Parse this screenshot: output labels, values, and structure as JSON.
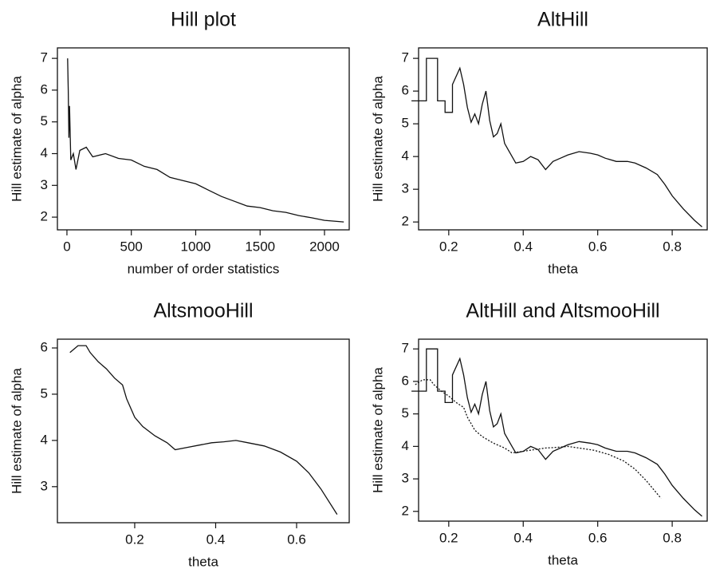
{
  "chart_data": [
    {
      "type": "line",
      "title": "Hill plot",
      "xlabel": "number of order statistics",
      "ylabel": "Hill estimate of alpha",
      "xlim": [
        -74,
        2192
      ],
      "ylim": [
        1.6,
        7.33
      ],
      "xticks": [
        0,
        500,
        1000,
        1500,
        2000
      ],
      "yticks": [
        2,
        3,
        4,
        5,
        6,
        7
      ],
      "series": [
        {
          "color": "#111111",
          "dash": false,
          "x": [
            5,
            10,
            15,
            20,
            30,
            50,
            70,
            100,
            150,
            200,
            300,
            400,
            500,
            600,
            700,
            800,
            900,
            1000,
            1100,
            1200,
            1300,
            1400,
            1500,
            1600,
            1700,
            1800,
            1900,
            2000,
            2150
          ],
          "values": [
            7,
            6,
            4.5,
            5.5,
            3.8,
            4,
            3.5,
            4.1,
            4.2,
            3.9,
            4.0,
            3.85,
            3.8,
            3.6,
            3.5,
            3.25,
            3.15,
            3.05,
            2.85,
            2.65,
            2.5,
            2.35,
            2.3,
            2.2,
            2.15,
            2.05,
            1.98,
            1.9,
            1.85
          ]
        }
      ]
    },
    {
      "type": "line",
      "title": "AltHill",
      "xlabel": "theta",
      "ylabel": "Hill estimate of alpha",
      "xlim": [
        0.119,
        0.894
      ],
      "ylim": [
        1.76,
        7.32
      ],
      "xticks": [
        0.2,
        0.4,
        0.6,
        0.8
      ],
      "yticks": [
        2,
        3,
        4,
        5,
        6,
        7
      ],
      "series": [
        {
          "color": "#111111",
          "dash": false,
          "x": [
            0.1,
            0.14,
            0.14,
            0.17,
            0.17,
            0.19,
            0.19,
            0.21,
            0.21,
            0.23,
            0.24,
            0.25,
            0.26,
            0.27,
            0.28,
            0.29,
            0.3,
            0.31,
            0.32,
            0.33,
            0.34,
            0.35,
            0.37,
            0.38,
            0.4,
            0.42,
            0.44,
            0.46,
            0.48,
            0.5,
            0.52,
            0.55,
            0.58,
            0.6,
            0.62,
            0.65,
            0.68,
            0.7,
            0.73,
            0.76,
            0.78,
            0.8,
            0.83,
            0.86,
            0.88
          ],
          "values": [
            5.7,
            5.7,
            7.0,
            7.0,
            5.7,
            5.7,
            5.35,
            5.35,
            6.2,
            6.7,
            6.2,
            5.5,
            5.05,
            5.3,
            5.0,
            5.6,
            6.0,
            5.1,
            4.6,
            4.7,
            5.0,
            4.4,
            4.0,
            3.8,
            3.85,
            4.0,
            3.9,
            3.6,
            3.85,
            3.95,
            4.05,
            4.15,
            4.1,
            4.05,
            3.95,
            3.85,
            3.85,
            3.8,
            3.65,
            3.45,
            3.15,
            2.8,
            2.4,
            2.05,
            1.85
          ]
        }
      ]
    },
    {
      "type": "line",
      "title": "AltsmooHill",
      "xlabel": "theta",
      "ylabel": "Hill estimate of alpha",
      "xlim": [
        0.009,
        0.73
      ],
      "ylim": [
        2.22,
        6.19
      ],
      "xticks": [
        0.2,
        0.4,
        0.6
      ],
      "yticks": [
        3,
        4,
        5,
        6
      ],
      "series": [
        {
          "color": "#111111",
          "dash": false,
          "x": [
            0.04,
            0.06,
            0.08,
            0.09,
            0.11,
            0.13,
            0.15,
            0.17,
            0.18,
            0.2,
            0.22,
            0.25,
            0.28,
            0.3,
            0.33,
            0.36,
            0.39,
            0.42,
            0.45,
            0.48,
            0.52,
            0.56,
            0.6,
            0.63,
            0.66,
            0.7
          ],
          "values": [
            5.9,
            6.05,
            6.05,
            5.9,
            5.7,
            5.55,
            5.35,
            5.2,
            4.9,
            4.5,
            4.3,
            4.1,
            3.95,
            3.8,
            3.85,
            3.9,
            3.95,
            3.97,
            4.0,
            3.95,
            3.88,
            3.75,
            3.55,
            3.3,
            2.95,
            2.4
          ]
        }
      ]
    },
    {
      "type": "line",
      "title": "AltHill and AltsmooHill",
      "xlabel": "theta",
      "ylabel": "Hill estimate of alpha",
      "xlim": [
        0.119,
        0.894
      ],
      "ylim": [
        1.7,
        7.3
      ],
      "xticks": [
        0.2,
        0.4,
        0.6,
        0.8
      ],
      "yticks": [
        2,
        3,
        4,
        5,
        6,
        7
      ],
      "series": [
        {
          "color": "#111111",
          "dash": false,
          "x": [
            0.1,
            0.14,
            0.14,
            0.17,
            0.17,
            0.19,
            0.19,
            0.21,
            0.21,
            0.23,
            0.24,
            0.25,
            0.26,
            0.27,
            0.28,
            0.29,
            0.3,
            0.31,
            0.32,
            0.33,
            0.34,
            0.35,
            0.37,
            0.38,
            0.4,
            0.42,
            0.44,
            0.46,
            0.48,
            0.5,
            0.52,
            0.55,
            0.58,
            0.6,
            0.62,
            0.65,
            0.68,
            0.7,
            0.73,
            0.76,
            0.78,
            0.8,
            0.83,
            0.86,
            0.88
          ],
          "values": [
            5.7,
            5.7,
            7.0,
            7.0,
            5.7,
            5.7,
            5.35,
            5.35,
            6.2,
            6.7,
            6.2,
            5.5,
            5.05,
            5.3,
            5.0,
            5.6,
            6.0,
            5.1,
            4.6,
            4.7,
            5.0,
            4.4,
            4.0,
            3.8,
            3.85,
            4.0,
            3.9,
            3.6,
            3.85,
            3.95,
            4.05,
            4.15,
            4.1,
            4.05,
            3.95,
            3.85,
            3.85,
            3.8,
            3.65,
            3.45,
            3.15,
            2.8,
            2.4,
            2.05,
            1.85
          ]
        },
        {
          "color": "#111111",
          "dash": true,
          "x": [
            0.11,
            0.13,
            0.15,
            0.16,
            0.18,
            0.2,
            0.22,
            0.24,
            0.25,
            0.27,
            0.29,
            0.32,
            0.35,
            0.37,
            0.4,
            0.43,
            0.46,
            0.49,
            0.52,
            0.55,
            0.59,
            0.63,
            0.67,
            0.7,
            0.73,
            0.77
          ],
          "values": [
            5.9,
            6.05,
            6.05,
            5.9,
            5.7,
            5.55,
            5.35,
            5.2,
            4.9,
            4.5,
            4.3,
            4.1,
            3.95,
            3.8,
            3.85,
            3.9,
            3.95,
            3.97,
            4.0,
            3.95,
            3.88,
            3.75,
            3.55,
            3.3,
            2.95,
            2.4
          ]
        }
      ]
    }
  ]
}
